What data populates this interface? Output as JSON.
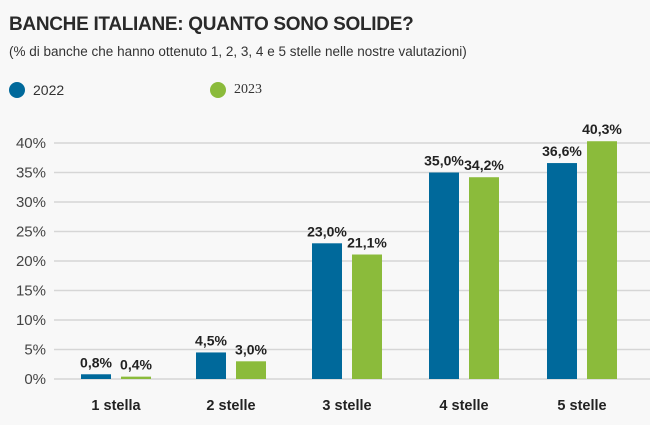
{
  "chart_data": {
    "type": "bar",
    "title": "BANCHE ITALIANE: QUANTO SONO SOLIDE?",
    "subtitle": "(% di banche che hanno ottenuto 1, 2, 3, 4 e 5 stelle nelle nostre valutazioni)",
    "categories": [
      "1 stella",
      "2 stelle",
      "3 stelle",
      "4 stelle",
      "5 stelle"
    ],
    "series": [
      {
        "name": "2022",
        "color": "#00699b",
        "values": [
          0.8,
          4.5,
          23.0,
          35.0,
          36.6
        ],
        "labels": [
          "0,8%",
          "4,5%",
          "23,0%",
          "35,0%",
          "36,6%"
        ]
      },
      {
        "name": "2023",
        "color": "#8bbb3b",
        "values": [
          0.4,
          3.0,
          21.1,
          34.2,
          40.3
        ],
        "labels": [
          "0,4%",
          "3,0%",
          "21,1%",
          "34,2%",
          "40,3%"
        ]
      }
    ],
    "yticks": [
      "0%",
      "5%",
      "10%",
      "15%",
      "20%",
      "25%",
      "30%",
      "35%",
      "40%"
    ],
    "ylim": [
      0,
      40
    ],
    "grid": true,
    "legend": "top-left"
  }
}
